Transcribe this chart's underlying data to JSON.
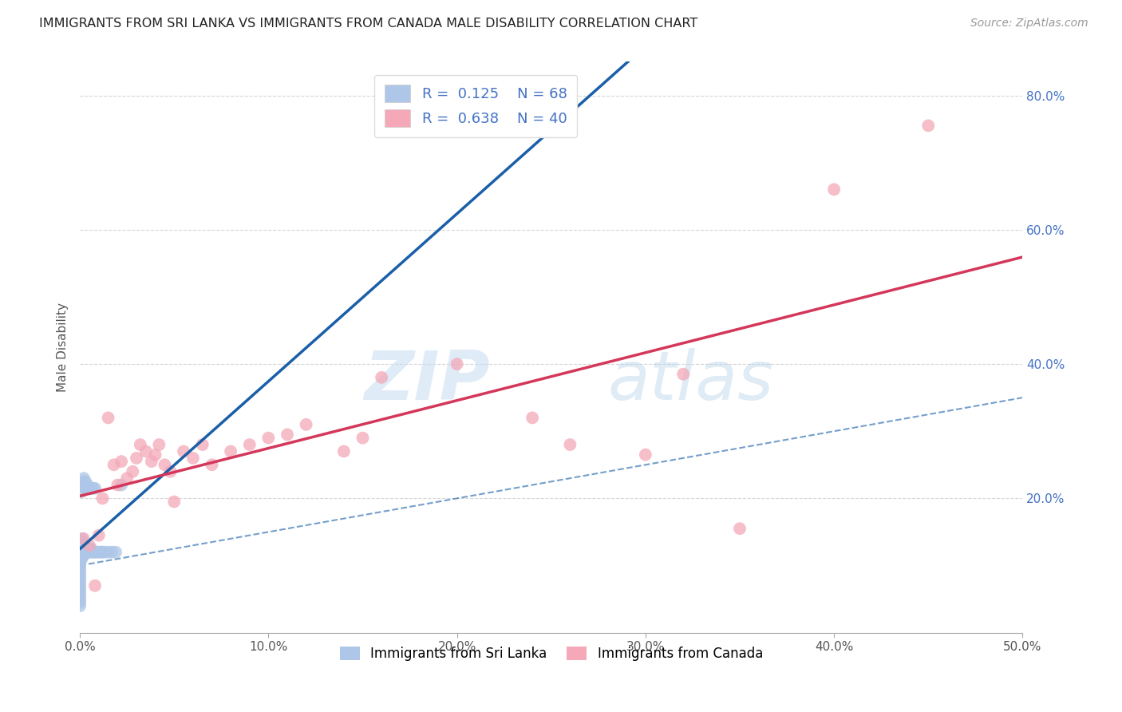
{
  "title": "IMMIGRANTS FROM SRI LANKA VS IMMIGRANTS FROM CANADA MALE DISABILITY CORRELATION CHART",
  "source": "Source: ZipAtlas.com",
  "ylabel": "Male Disability",
  "legend_bottom": [
    "Immigrants from Sri Lanka",
    "Immigrants from Canada"
  ],
  "sri_lanka": {
    "name": "Immigrants from Sri Lanka",
    "R": 0.125,
    "N": 68,
    "color": "#aec6e8",
    "line_color": "#1a5fa8",
    "x": [
      0.0,
      0.0,
      0.0,
      0.0,
      0.0,
      0.0,
      0.0,
      0.0,
      0.0,
      0.0,
      0.0,
      0.0,
      0.0,
      0.0,
      0.0,
      0.0,
      0.0,
      0.0,
      0.0,
      0.0,
      0.001,
      0.001,
      0.001,
      0.001,
      0.001,
      0.001,
      0.001,
      0.001,
      0.001,
      0.001,
      0.001,
      0.001,
      0.002,
      0.002,
      0.002,
      0.002,
      0.002,
      0.002,
      0.002,
      0.002,
      0.003,
      0.003,
      0.003,
      0.003,
      0.003,
      0.004,
      0.004,
      0.004,
      0.004,
      0.005,
      0.005,
      0.005,
      0.006,
      0.006,
      0.006,
      0.007,
      0.007,
      0.008,
      0.008,
      0.009,
      0.01,
      0.011,
      0.012,
      0.013,
      0.015,
      0.017,
      0.019,
      0.022
    ],
    "y": [
      0.1,
      0.105,
      0.108,
      0.11,
      0.112,
      0.115,
      0.118,
      0.12,
      0.095,
      0.09,
      0.085,
      0.08,
      0.075,
      0.07,
      0.065,
      0.06,
      0.055,
      0.05,
      0.045,
      0.04,
      0.11,
      0.115,
      0.118,
      0.12,
      0.122,
      0.125,
      0.128,
      0.13,
      0.135,
      0.14,
      0.21,
      0.22,
      0.115,
      0.12,
      0.125,
      0.13,
      0.215,
      0.22,
      0.225,
      0.23,
      0.12,
      0.125,
      0.215,
      0.22,
      0.225,
      0.12,
      0.125,
      0.215,
      0.22,
      0.12,
      0.125,
      0.215,
      0.12,
      0.125,
      0.215,
      0.12,
      0.215,
      0.12,
      0.215,
      0.12,
      0.12,
      0.12,
      0.12,
      0.12,
      0.12,
      0.12,
      0.12,
      0.22
    ]
  },
  "canada": {
    "name": "Immigrants from Canada",
    "R": 0.638,
    "N": 40,
    "color": "#f4a8b8",
    "line_color": "#d4375a",
    "x": [
      0.002,
      0.005,
      0.008,
      0.01,
      0.012,
      0.015,
      0.018,
      0.02,
      0.022,
      0.025,
      0.028,
      0.03,
      0.032,
      0.035,
      0.038,
      0.04,
      0.042,
      0.045,
      0.048,
      0.05,
      0.055,
      0.06,
      0.065,
      0.07,
      0.08,
      0.09,
      0.1,
      0.11,
      0.12,
      0.14,
      0.15,
      0.16,
      0.2,
      0.24,
      0.26,
      0.3,
      0.32,
      0.35,
      0.4,
      0.45
    ],
    "y": [
      0.14,
      0.13,
      0.07,
      0.145,
      0.2,
      0.32,
      0.25,
      0.22,
      0.255,
      0.23,
      0.24,
      0.26,
      0.28,
      0.27,
      0.255,
      0.265,
      0.28,
      0.25,
      0.24,
      0.195,
      0.27,
      0.26,
      0.28,
      0.25,
      0.27,
      0.28,
      0.29,
      0.295,
      0.31,
      0.27,
      0.29,
      0.38,
      0.4,
      0.32,
      0.28,
      0.265,
      0.385,
      0.155,
      0.66,
      0.755
    ]
  },
  "xlim": [
    0.0,
    0.5
  ],
  "ylim": [
    0.0,
    0.85
  ],
  "xticks": [
    0.0,
    0.1,
    0.2,
    0.3,
    0.4,
    0.5
  ],
  "xtick_labels": [
    "0.0%",
    "10.0%",
    "20.0%",
    "30.0%",
    "40.0%",
    "50.0%"
  ],
  "yticks_right": [
    0.0,
    0.2,
    0.4,
    0.6,
    0.8
  ],
  "ytick_labels_right": [
    "",
    "20.0%",
    "40.0%",
    "60.0%",
    "80.0%"
  ],
  "watermark_zip": "ZIP",
  "watermark_atlas": "atlas",
  "background_color": "#ffffff",
  "grid_color": "#cccccc"
}
